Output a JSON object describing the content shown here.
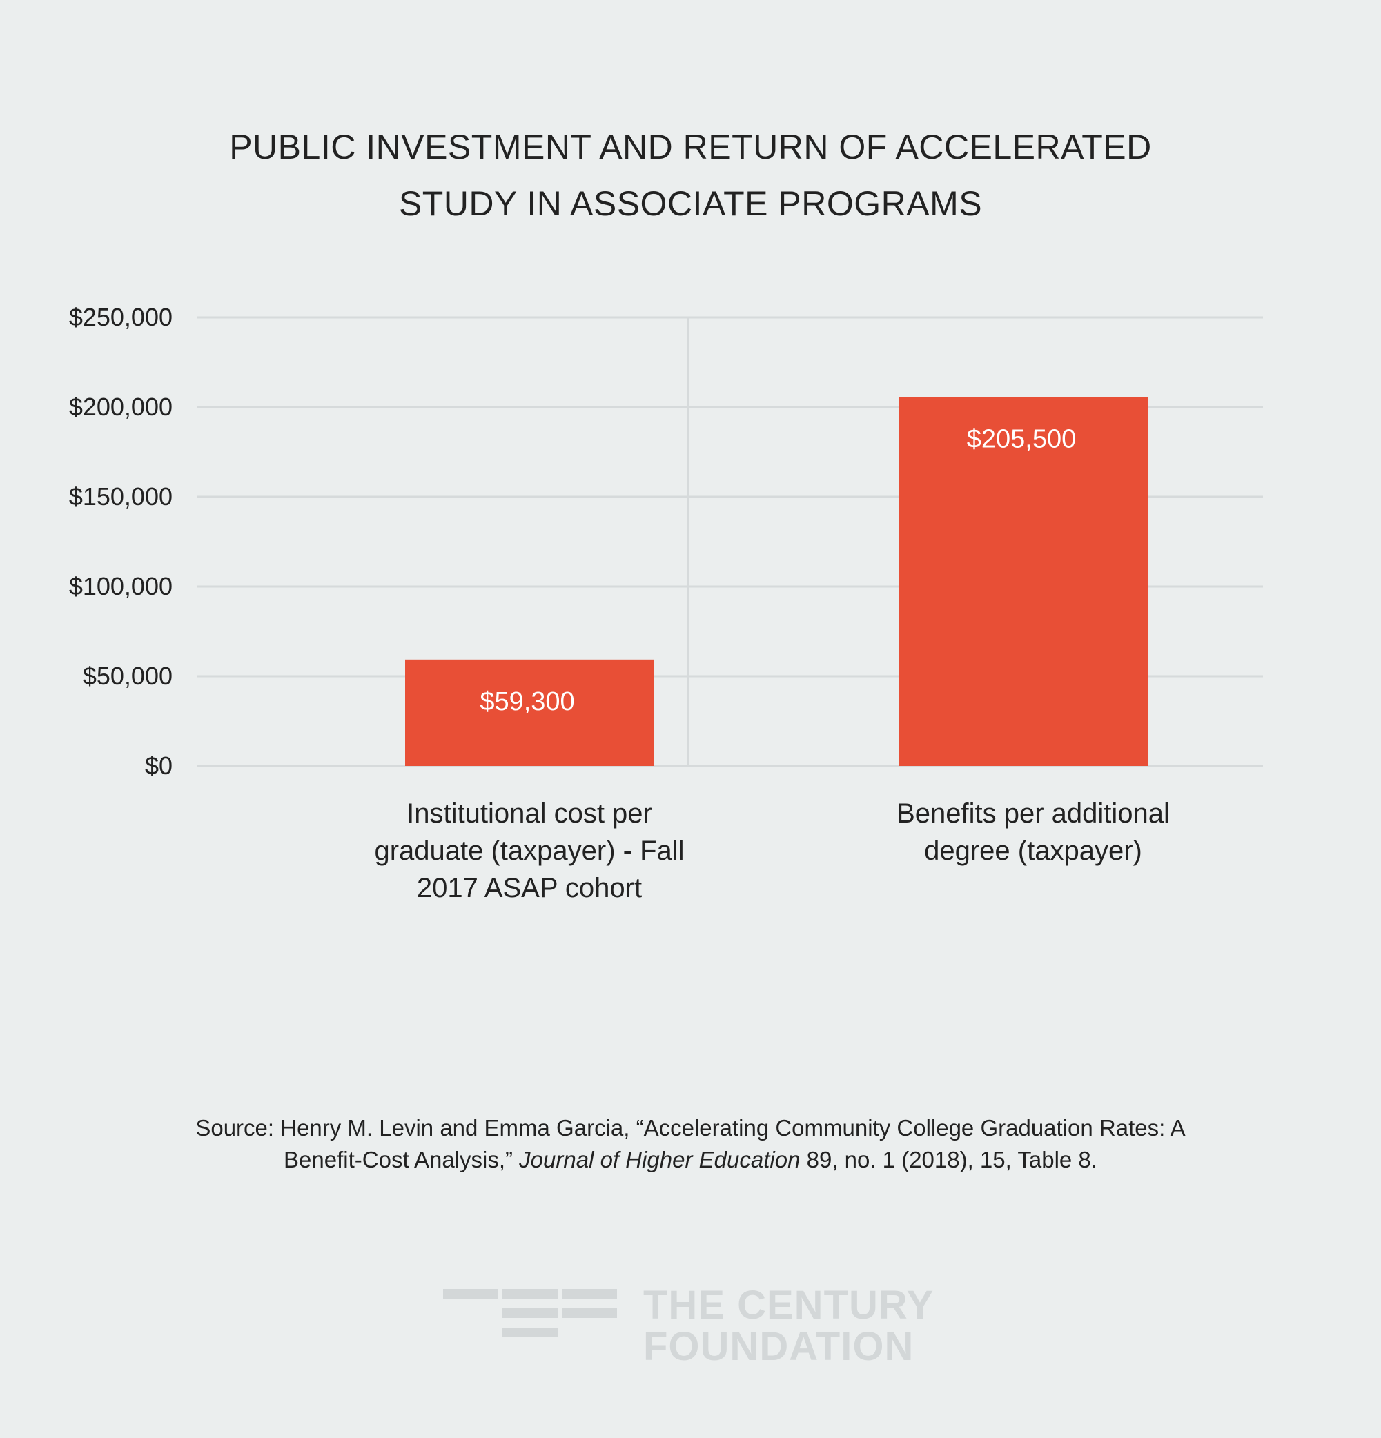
{
  "chart_data": {
    "type": "bar",
    "title": "PUBLIC INVESTMENT AND RETURN OF ACCELERATED STUDY IN ASSOCIATE PROGRAMS",
    "title_lines": [
      "PUBLIC INVESTMENT AND RETURN OF ACCELERATED",
      "STUDY IN ASSOCIATE PROGRAMS"
    ],
    "categories": [
      "Institutional cost per graduate (taxpayer) - Fall 2017 ASAP cohort",
      "Benefits per additional degree (taxpayer)"
    ],
    "category_label_lines": [
      [
        "Institutional cost per",
        "graduate (taxpayer) - Fall",
        "2017 ASAP cohort"
      ],
      [
        "Benefits per additional",
        "degree (taxpayer)"
      ]
    ],
    "values": [
      59300,
      205500
    ],
    "data_labels": [
      "$59,300",
      "$205,500"
    ],
    "xlabel": "",
    "ylabel": "",
    "ylim": [
      0,
      250000
    ],
    "yticks": [
      0,
      50000,
      100000,
      150000,
      200000,
      250000
    ],
    "ytick_labels": [
      "$0",
      "$50,000",
      "$100,000",
      "$150,000",
      "$200,000",
      "$250,000"
    ],
    "grid": true,
    "legend": "none",
    "colors": {
      "bar": "#e84f36",
      "grid": "#d6dadb",
      "background": "#ebeeee",
      "data_label": "#ffffff",
      "text": "#222222"
    }
  },
  "source": {
    "line1": "Source: Henry M. Levin and Emma Garcia, “Accelerating Community College Graduation Rates: A",
    "line2_prefix": "Benefit-Cost Analysis,”",
    "line2_italic": "Journal of Higher Education",
    "line2_suffix": "89, no. 1 (2018), 15, Table 8."
  },
  "logo": {
    "line1": "THE CENTURY",
    "line2": "FOUNDATION",
    "color": "#d3d7d8"
  }
}
